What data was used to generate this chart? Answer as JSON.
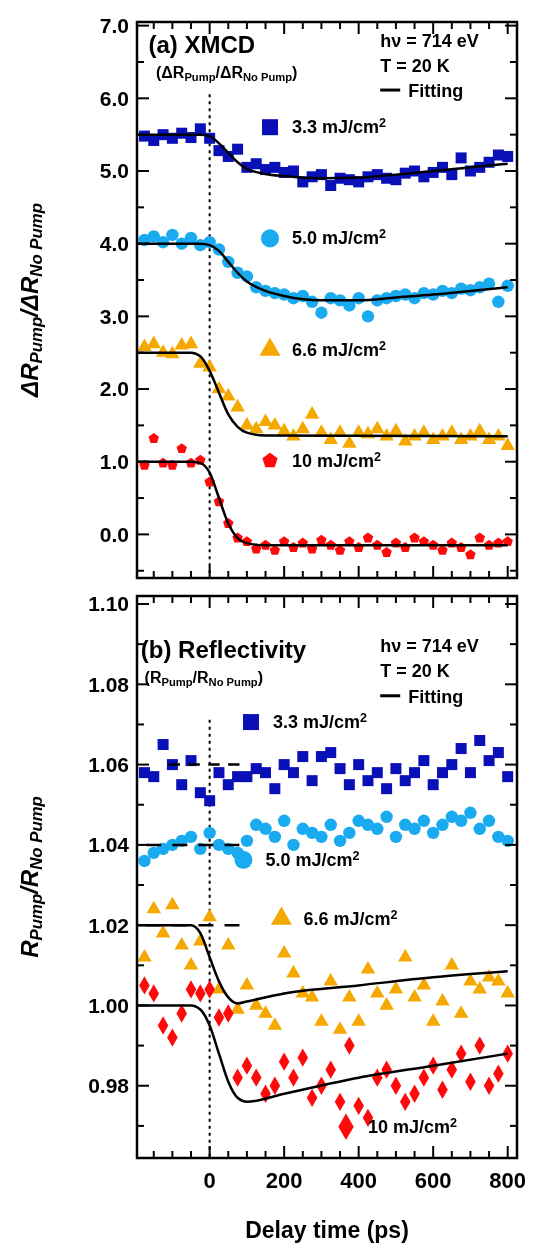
{
  "chart_data": [
    {
      "type": "scatter",
      "ylabel": "ΔR$_{Pump}$/ΔR$_{No Pump}$",
      "annotations": [
        "(a) XMCD",
        "(ΔR$_{Pump}$/ΔR$_{No Pump}$)",
        "hν = 714 eV",
        "T = 20 K"
      ],
      "x": [
        -175,
        -150,
        -125,
        -100,
        -75,
        -50,
        -25,
        0,
        25,
        50,
        75,
        100,
        125,
        150,
        175,
        200,
        225,
        250,
        275,
        300,
        325,
        350,
        375,
        400,
        425,
        450,
        475,
        500,
        525,
        550,
        575,
        600,
        625,
        650,
        675,
        700,
        725,
        750,
        775,
        800
      ],
      "xlim": [
        -195,
        825
      ],
      "xticks": [
        {
          "value": -150,
          "label": null
        },
        {
          "value": -100,
          "label": null
        },
        {
          "value": -50,
          "label": null
        },
        0,
        {
          "value": 50,
          "label": null
        },
        {
          "value": 100,
          "label": null
        },
        {
          "value": 150,
          "label": null
        },
        200,
        {
          "value": 250,
          "label": null
        },
        {
          "value": 300,
          "label": null
        },
        {
          "value": 350,
          "label": null
        },
        400,
        {
          "value": 450,
          "label": null
        },
        {
          "value": 500,
          "label": null
        },
        {
          "value": 550,
          "label": null
        },
        600,
        {
          "value": 650,
          "label": null
        },
        {
          "value": 700,
          "label": null
        },
        {
          "value": 750,
          "label": null
        },
        800
      ],
      "ylim": [
        -0.6,
        7.05
      ],
      "yticks": [
        {
          "value": -0.5,
          "label": null
        },
        {
          "value": 0,
          "label": "0.0"
        },
        {
          "value": 0.5,
          "label": null
        },
        {
          "value": 1,
          "label": "1.0"
        },
        {
          "value": 1.5,
          "label": null
        },
        {
          "value": 2,
          "label": "2.0"
        },
        {
          "value": 2.5,
          "label": null
        },
        {
          "value": 3,
          "label": "3.0"
        },
        {
          "value": 3.5,
          "label": null
        },
        {
          "value": 4,
          "label": "4.0"
        },
        {
          "value": 4.5,
          "label": null
        },
        {
          "value": 5,
          "label": "5.0"
        },
        {
          "value": 5.5,
          "label": null
        },
        {
          "value": 6,
          "label": "6.0"
        },
        {
          "value": 6.5,
          "label": null
        },
        {
          "value": 7,
          "label": "7.0"
        }
      ],
      "tick_labels": "y",
      "legend": "top right",
      "grid": false,
      "ref_lines": [
        {
          "axis": "x",
          "value": 0,
          "color": "#000000",
          "line_style": "dotted"
        }
      ],
      "series": [
        {
          "name": "3.3 mJ/cm$^{2}$",
          "color": "#0a10b8",
          "marker": "square",
          "values": [
            5.48,
            5.42,
            5.5,
            5.45,
            5.52,
            5.46,
            5.58,
            5.45,
            5.28,
            5.2,
            5.3,
            5.05,
            5.1,
            5.02,
            5.05,
            4.98,
            5.0,
            4.85,
            4.92,
            4.95,
            4.8,
            4.9,
            4.88,
            4.85,
            4.92,
            4.95,
            4.9,
            4.88,
            4.97,
            5.0,
            4.92,
            4.98,
            5.05,
            4.95,
            5.18,
            5.0,
            5.05,
            5.12,
            5.22,
            5.2
          ]
        },
        {
          "name": "5.0 mJ/cm$^{2}$",
          "color": "#1aaaf0",
          "marker": "circle",
          "values": [
            4.05,
            4.1,
            4.02,
            4.12,
            4.0,
            4.08,
            3.98,
            4.02,
            3.92,
            3.75,
            3.6,
            3.55,
            3.4,
            3.35,
            3.32,
            3.3,
            3.25,
            3.28,
            3.2,
            3.05,
            3.25,
            3.22,
            3.15,
            3.25,
            3.0,
            3.22,
            3.25,
            3.28,
            3.3,
            3.25,
            3.32,
            3.3,
            3.35,
            3.32,
            3.38,
            3.36,
            3.4,
            3.45,
            3.2,
            3.42
          ]
        },
        {
          "name": "6.6 mJ/cm$^{2}$",
          "color": "#f5a900",
          "marker": "triangle",
          "values": [
            2.58,
            2.62,
            2.5,
            2.48,
            2.6,
            2.62,
            2.35,
            2.3,
            2.0,
            1.9,
            1.75,
            1.5,
            1.45,
            1.55,
            1.5,
            1.42,
            1.35,
            1.45,
            1.65,
            1.4,
            1.3,
            1.4,
            1.25,
            1.4,
            1.38,
            1.45,
            1.35,
            1.42,
            1.28,
            1.35,
            1.4,
            1.3,
            1.35,
            1.4,
            1.3,
            1.35,
            1.42,
            1.3,
            1.35,
            1.22
          ]
        },
        {
          "name": "10 mJ/cm$^{2}$",
          "color": "#ff0a0a",
          "values": [
            0.95,
            1.32,
            0.98,
            0.95,
            1.18,
            0.98,
            1.02,
            0.72,
            0.45,
            0.15,
            -0.05,
            -0.1,
            -0.2,
            -0.15,
            -0.22,
            -0.1,
            -0.18,
            -0.12,
            -0.2,
            -0.08,
            -0.15,
            -0.22,
            -0.1,
            -0.18,
            -0.05,
            -0.15,
            -0.25,
            -0.12,
            -0.18,
            -0.05,
            -0.1,
            -0.15,
            -0.22,
            -0.12,
            -0.18,
            -0.28,
            -0.05,
            -0.15,
            -0.12,
            -0.1
          ]
        },
        {
          "type": "line",
          "name": "Fitting",
          "color": "#000000",
          "x": [
            -195,
            -25,
            0,
            25,
            50,
            75,
            100,
            150,
            200,
            300,
            400,
            500,
            600,
            700,
            800
          ],
          "values": [
            5.5,
            5.5,
            5.48,
            5.38,
            5.25,
            5.12,
            5.03,
            4.96,
            4.93,
            4.9,
            4.91,
            4.95,
            5.0,
            5.05,
            5.1
          ]
        },
        {
          "type": "line",
          "color": "#000000",
          "x": [
            -195,
            -25,
            0,
            25,
            50,
            75,
            100,
            150,
            200,
            300,
            400,
            500,
            600,
            700,
            800
          ],
          "values": [
            4.0,
            4.0,
            3.98,
            3.9,
            3.75,
            3.6,
            3.48,
            3.35,
            3.28,
            3.22,
            3.22,
            3.26,
            3.3,
            3.35,
            3.4
          ]
        },
        {
          "type": "line",
          "color": "#000000",
          "x": [
            -195,
            -50,
            -25,
            0,
            25,
            50,
            75,
            100,
            150,
            800
          ],
          "values": [
            2.5,
            2.5,
            2.45,
            2.25,
            1.95,
            1.65,
            1.48,
            1.4,
            1.36,
            1.35
          ]
        },
        {
          "type": "line",
          "color": "#000000",
          "x": [
            -195,
            -50,
            -25,
            0,
            25,
            50,
            75,
            100,
            150,
            800
          ],
          "values": [
            1.0,
            1.0,
            0.98,
            0.85,
            0.5,
            0.15,
            -0.05,
            -0.12,
            -0.15,
            -0.15
          ]
        }
      ]
    },
    {
      "type": "scatter",
      "xlabel": "Delay time (ps)",
      "ylabel": "R$_{Pump}$/R$_{No Pump}$",
      "annotations": [
        "(b) Reflectivity",
        "(R$_{Pump}$/R$_{No Pump}$)",
        "hν = 714 eV",
        "T = 20 K"
      ],
      "x": [
        -175,
        -150,
        -125,
        -100,
        -75,
        -50,
        -25,
        0,
        25,
        50,
        75,
        100,
        125,
        150,
        175,
        200,
        225,
        250,
        275,
        300,
        325,
        350,
        375,
        400,
        425,
        450,
        475,
        500,
        525,
        550,
        575,
        600,
        625,
        650,
        675,
        700,
        725,
        750,
        775,
        800
      ],
      "xlim": [
        -195,
        825
      ],
      "xticks": [
        {
          "value": -150,
          "label": null
        },
        {
          "value": -100,
          "label": null
        },
        {
          "value": -50,
          "label": null
        },
        0,
        {
          "value": 50,
          "label": null
        },
        {
          "value": 100,
          "label": null
        },
        {
          "value": 150,
          "label": null
        },
        200,
        {
          "value": 250,
          "label": null
        },
        {
          "value": 300,
          "label": null
        },
        {
          "value": 350,
          "label": null
        },
        400,
        {
          "value": 450,
          "label": null
        },
        {
          "value": 500,
          "label": null
        },
        {
          "value": 550,
          "label": null
        },
        600,
        {
          "value": 650,
          "label": null
        },
        {
          "value": 700,
          "label": null
        },
        {
          "value": 750,
          "label": null
        },
        800
      ],
      "ylim": [
        0.962,
        1.102
      ],
      "yticks": [
        {
          "value": 0.97,
          "label": null
        },
        0.98,
        {
          "value": 0.99,
          "label": null
        },
        {
          "value": 1.0,
          "label": "1.00"
        },
        {
          "value": 1.01,
          "label": null
        },
        1.02,
        {
          "value": 1.03,
          "label": null
        },
        1.04,
        {
          "value": 1.05,
          "label": null
        },
        1.06,
        {
          "value": 1.07,
          "label": null
        },
        1.08,
        {
          "value": 1.09,
          "label": null
        },
        {
          "value": 1.1,
          "label": "1.10"
        }
      ],
      "legend": "right",
      "grid": false,
      "ref_lines": [
        {
          "axis": "x",
          "value": 0,
          "color": "#000000",
          "line_style": "dotted"
        }
      ],
      "series": [
        {
          "name": "3.3 mJ/cm$^{2}$",
          "color": "#0a10b8",
          "marker": "square",
          "values": [
            1.058,
            1.057,
            1.065,
            1.06,
            1.055,
            1.061,
            1.053,
            1.051,
            1.058,
            1.055,
            1.057,
            1.057,
            1.059,
            1.058,
            1.054,
            1.06,
            1.058,
            1.062,
            1.056,
            1.062,
            1.063,
            1.059,
            1.055,
            1.06,
            1.056,
            1.058,
            1.054,
            1.059,
            1.056,
            1.058,
            1.061,
            1.055,
            1.058,
            1.06,
            1.064,
            1.058,
            1.066,
            1.061,
            1.063,
            1.057
          ]
        },
        {
          "name": "5.0 mJ/cm$^{2}$",
          "color": "#1aaaf0",
          "marker": "circle",
          "values": [
            1.036,
            1.038,
            1.039,
            1.04,
            1.041,
            1.042,
            1.039,
            1.043,
            1.04,
            1.039,
            1.038,
            1.041,
            1.045,
            1.044,
            1.042,
            1.046,
            1.04,
            1.044,
            1.043,
            1.042,
            1.045,
            1.041,
            1.043,
            1.046,
            1.045,
            1.044,
            1.047,
            1.042,
            1.045,
            1.044,
            1.046,
            1.043,
            1.045,
            1.047,
            1.046,
            1.048,
            1.044,
            1.046,
            1.042,
            1.041
          ]
        },
        {
          "name": "6.6 mJ/cm$^{2}$",
          "color": "#f5a900",
          "marker": "triangle",
          "values": [
            1.012,
            1.024,
            1.018,
            1.025,
            1.015,
            1.01,
            1.016,
            1.022,
            1.004,
            1.015,
            0.999,
            1.005,
            1.0,
            0.998,
            0.995,
            1.013,
            1.008,
            1.003,
            1.002,
            0.996,
            1.006,
            0.994,
            1.002,
            0.996,
            1.009,
            1.003,
            1.0,
            1.004,
            1.012,
            1.002,
            1.005,
            0.996,
            1.001,
            1.01,
            0.998,
            1.006,
            1.004,
            1.007,
            1.006,
            1.003
          ]
        },
        {
          "name": "10 mJ/cm$^{2}$",
          "color": "#ff0a0a",
          "marker": "diamond",
          "values": [
            1.005,
            1.003,
            0.995,
            0.992,
            0.998,
            1.004,
            1.003,
            1.004,
            0.997,
            0.998,
            0.982,
            0.985,
            0.982,
            0.978,
            0.98,
            0.986,
            0.982,
            0.987,
            0.977,
            0.98,
            0.984,
            0.976,
            0.99,
            0.975,
            0.972,
            0.982,
            0.984,
            0.98,
            0.976,
            0.978,
            0.982,
            0.985,
            0.979,
            0.984,
            0.988,
            0.981,
            0.99,
            0.98,
            0.983,
            0.988
          ]
        },
        {
          "type": "line",
          "name": "Fitting",
          "color": "#000000",
          "x": [
            -195,
            -50,
            -25,
            0,
            25,
            50,
            75,
            100,
            200,
            400,
            600,
            800
          ],
          "values": [
            1.02,
            1.02,
            1.018,
            1.012,
            1.006,
            1.002,
            1.0005,
            1.001,
            1.003,
            1.005,
            1.007,
            1.0085
          ]
        },
        {
          "type": "line",
          "color": "#000000",
          "x": [
            -195,
            -50,
            -25,
            0,
            25,
            50,
            75,
            100,
            200,
            400,
            600,
            800
          ],
          "values": [
            1.0,
            1.0,
            0.999,
            0.995,
            0.988,
            0.981,
            0.977,
            0.976,
            0.978,
            0.982,
            0.985,
            0.988
          ]
        },
        {
          "type": "line",
          "color": "#000000",
          "line_style": "dashed",
          "x": [
            -110,
            80
          ],
          "values": [
            1.06,
            1.06
          ]
        },
        {
          "type": "line",
          "color": "#000000",
          "line_style": "dashed",
          "x": [
            -170,
            80
          ],
          "values": [
            1.04,
            1.04
          ]
        },
        {
          "type": "line",
          "color": "#000000",
          "line_style": "dashed",
          "x": [
            -170,
            80
          ],
          "values": [
            1.02,
            1.02
          ]
        }
      ]
    }
  ]
}
